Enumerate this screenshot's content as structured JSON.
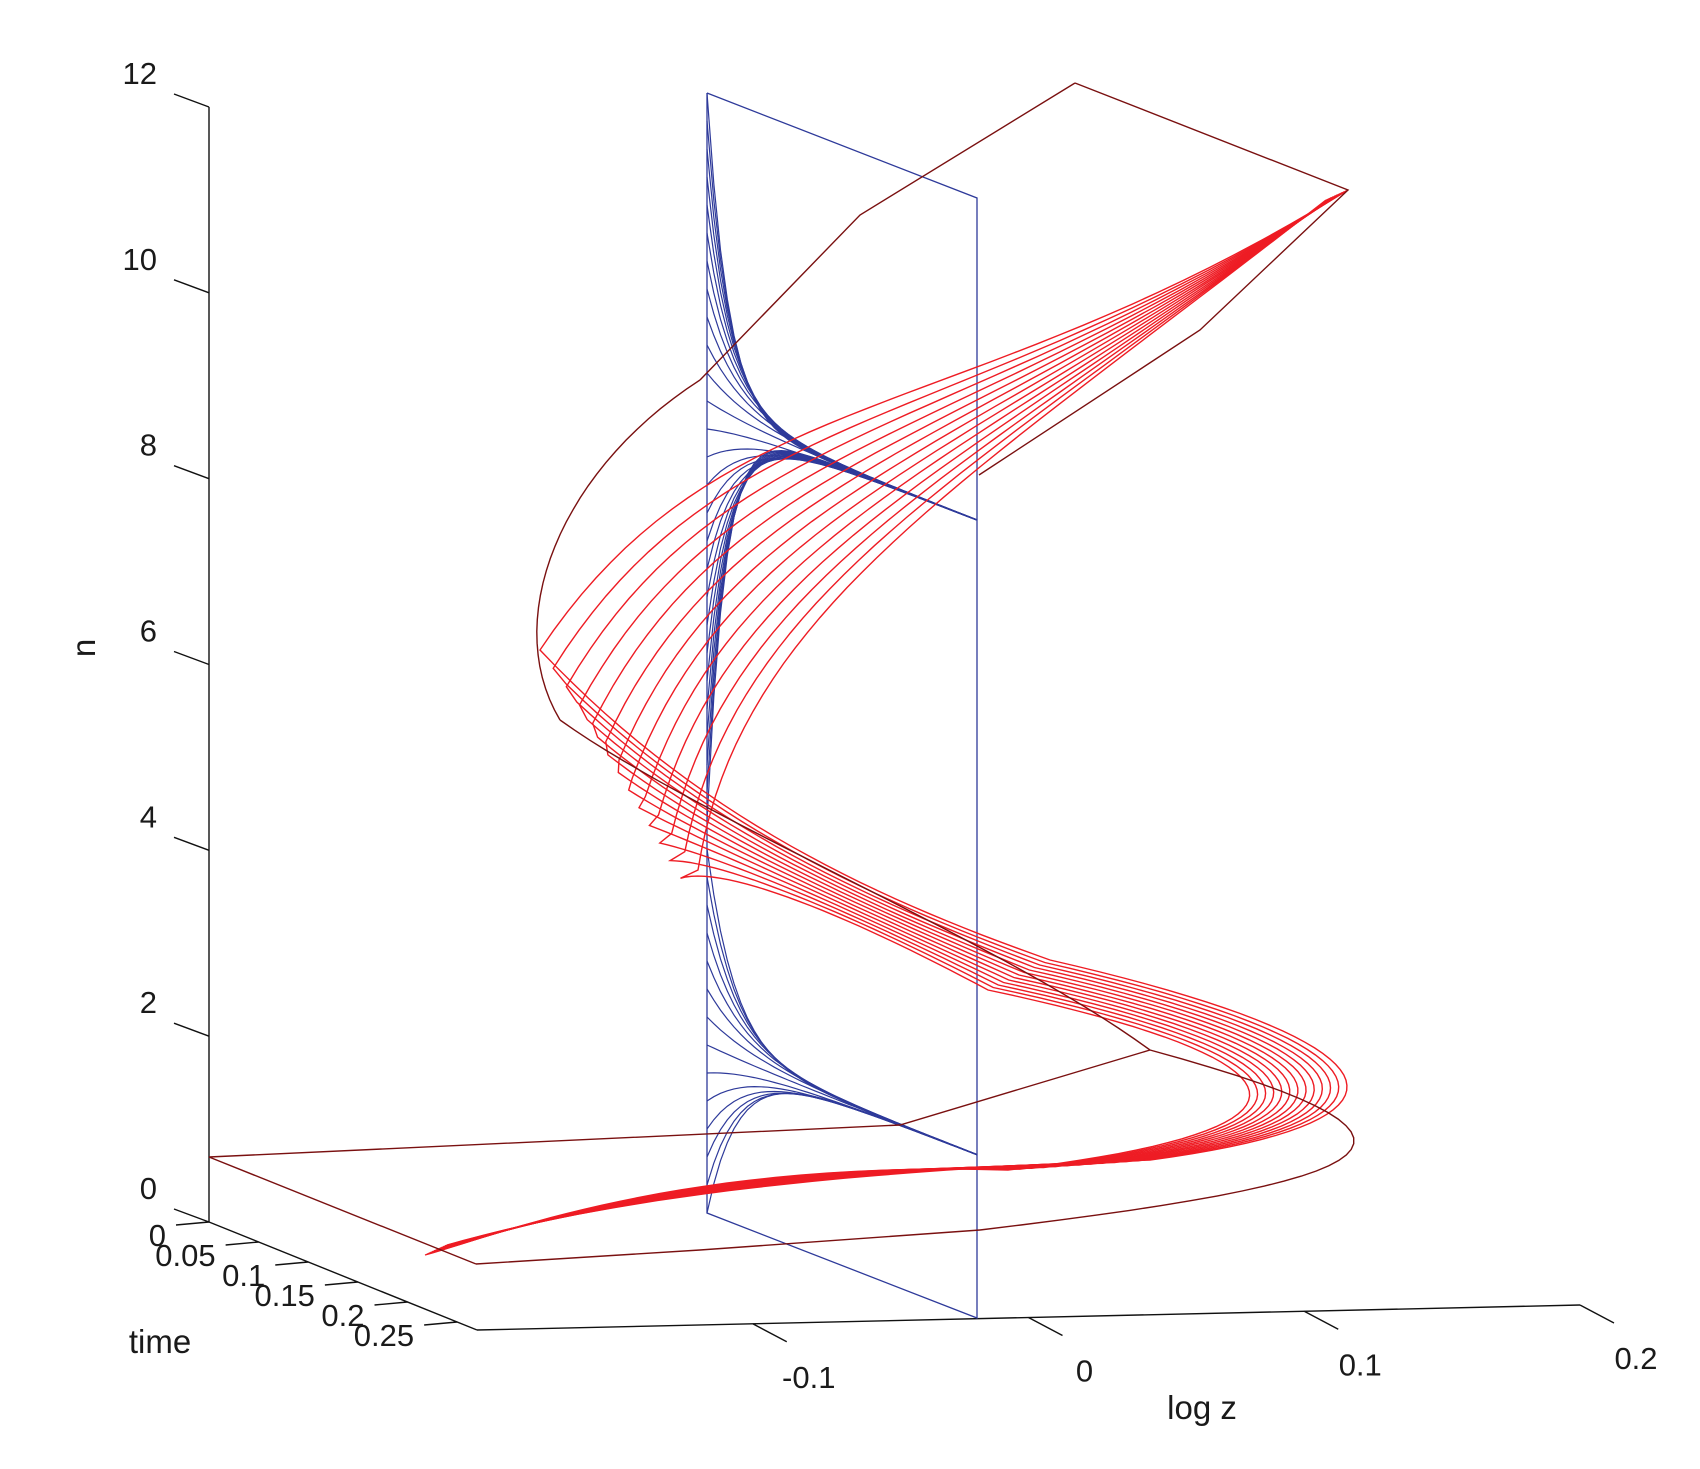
{
  "chart_data": {
    "type": "surface-3d-wireframe",
    "view": "3-D perspective view",
    "axes": {
      "n": {
        "label": "n",
        "range": [
          0,
          12
        ],
        "ticks": [
          "0",
          "2",
          "4",
          "6",
          "8",
          "10",
          "12"
        ]
      },
      "time": {
        "label": "time",
        "range": [
          0,
          0.27
        ],
        "ticks": [
          "0",
          "0.05",
          "0.1",
          "0.15",
          "0.2",
          "0.25"
        ]
      },
      "logz": {
        "label": "log z",
        "range": [
          -0.2,
          0.2
        ],
        "ticks": [
          "-0.1",
          "0",
          "0.1",
          "0.2"
        ]
      }
    },
    "colors": {
      "surface_curves": "#ee1c24",
      "surface_boundary": "#7a1010",
      "plane_curves": "#2e3a9a",
      "axis": "#111111"
    },
    "series": [
      {
        "kind": "red traveling-front curves n vs log z, one curve per time step",
        "time_range": [
          0,
          0.27
        ],
        "n_range": [
          0,
          12
        ],
        "curve_count": 13
      },
      {
        "kind": "blue time-evolution curves in the log z = 0 plane, one per n level",
        "n_range": [
          0,
          12
        ],
        "curve_count": 40
      }
    ],
    "grid": false,
    "legend": "none"
  }
}
